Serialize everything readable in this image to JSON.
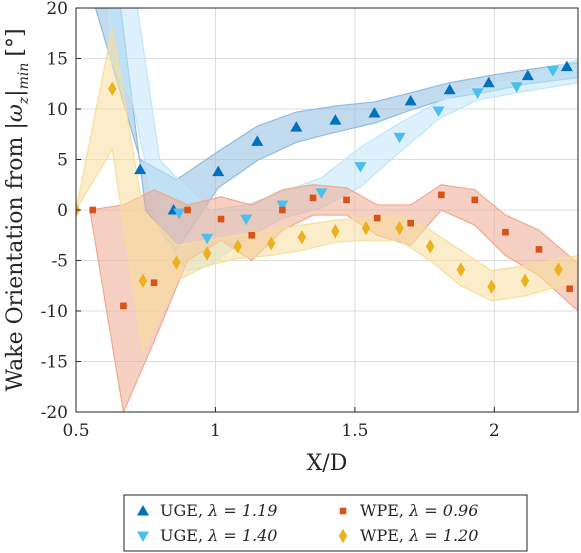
{
  "chart_data": {
    "type": "scatter",
    "xlabel": "X/D",
    "ylabel": "Wake Orientation from |ω_z|_min [°]",
    "ylabel_main": "Wake Orientation from ",
    "ylabel_omega": "|ω",
    "ylabel_sub": "z",
    "ylabel_bar": "|",
    "ylabel_min": "min",
    "ylabel_unit": "[°]",
    "xlim": [
      0.5,
      2.3
    ],
    "ylim": [
      -20,
      20
    ],
    "xticks": [
      0.5,
      1,
      1.5,
      2
    ],
    "xtick_labels": [
      "0.5",
      "1",
      "1.5",
      "2"
    ],
    "yticks": [
      -20,
      -15,
      -10,
      -5,
      0,
      5,
      10,
      15,
      20
    ],
    "ytick_labels": [
      "-20",
      "-15",
      "-10",
      "-5",
      "0",
      "5",
      "10",
      "15",
      "20"
    ],
    "grid": true,
    "legend_position": "below",
    "series": [
      {
        "name": "UGE, λ = 1.19",
        "legend_prefix": "UGE, ",
        "legend_value": "λ = 1.19",
        "marker": "triangle-up",
        "color": "#0072BD",
        "band_color": "#8FBCE0",
        "points": [
          [
            0.73,
            4
          ],
          [
            0.85,
            0
          ],
          [
            1.01,
            3.8
          ],
          [
            1.15,
            6.8
          ],
          [
            1.29,
            8.2
          ],
          [
            1.43,
            8.9
          ],
          [
            1.57,
            9.6
          ],
          [
            1.7,
            10.8
          ],
          [
            1.84,
            11.9
          ],
          [
            1.98,
            12.6
          ],
          [
            2.12,
            13.3
          ],
          [
            2.26,
            14.2
          ]
        ],
        "band_upper": [
          [
            0.57,
            20
          ],
          [
            0.73,
            5
          ],
          [
            0.86,
            3
          ],
          [
            1.01,
            5.8
          ],
          [
            1.15,
            8.3
          ],
          [
            1.29,
            9.7
          ],
          [
            1.43,
            10.3
          ],
          [
            1.57,
            10.7
          ],
          [
            1.7,
            11.6
          ],
          [
            1.84,
            12.6
          ],
          [
            1.98,
            13.3
          ],
          [
            2.12,
            13.9
          ],
          [
            2.3,
            14.6
          ]
        ],
        "band_lower": [
          [
            0.66,
            20
          ],
          [
            0.75,
            0
          ],
          [
            0.86,
            -4
          ],
          [
            1.01,
            2.2
          ],
          [
            1.15,
            4.9
          ],
          [
            1.29,
            6.7
          ],
          [
            1.43,
            7.7
          ],
          [
            1.57,
            8.6
          ],
          [
            1.7,
            9.9
          ],
          [
            1.84,
            11.1
          ],
          [
            1.98,
            11.7
          ],
          [
            2.12,
            12.5
          ],
          [
            2.3,
            13.1
          ]
        ]
      },
      {
        "name": "UGE, λ = 1.40",
        "legend_prefix": "UGE, ",
        "legend_value": "λ = 1.40",
        "marker": "triangle-down",
        "color": "#4DBEEE",
        "band_color": "#BFE6F8",
        "points": [
          [
            0.87,
            -0.3
          ],
          [
            0.97,
            -2.8
          ],
          [
            1.11,
            -0.9
          ],
          [
            1.24,
            0.5
          ],
          [
            1.38,
            1.7
          ],
          [
            1.52,
            4.3
          ],
          [
            1.66,
            7.2
          ],
          [
            1.8,
            9.8
          ],
          [
            1.94,
            11.6
          ],
          [
            2.08,
            12.2
          ],
          [
            2.21,
            13.8
          ]
        ],
        "band_upper": [
          [
            0.62,
            20
          ],
          [
            0.72,
            20
          ],
          [
            0.8,
            5
          ],
          [
            0.9,
            2
          ],
          [
            0.98,
            0
          ],
          [
            1.11,
            0.5
          ],
          [
            1.24,
            1.8
          ],
          [
            1.38,
            3.2
          ],
          [
            1.52,
            6.2
          ],
          [
            1.66,
            8.6
          ],
          [
            1.8,
            10.7
          ],
          [
            1.94,
            12.3
          ],
          [
            2.08,
            12.8
          ],
          [
            2.3,
            14.9
          ]
        ],
        "band_lower": [
          [
            0.62,
            15
          ],
          [
            0.7,
            11
          ],
          [
            0.8,
            -2
          ],
          [
            0.9,
            -6
          ],
          [
            0.98,
            -5.5
          ],
          [
            1.11,
            -2.8
          ],
          [
            1.24,
            -0.8
          ],
          [
            1.38,
            0.2
          ],
          [
            1.52,
            2.3
          ],
          [
            1.66,
            5.7
          ],
          [
            1.8,
            9.0
          ],
          [
            1.94,
            10.9
          ],
          [
            2.08,
            11.6
          ],
          [
            2.3,
            12.6
          ]
        ]
      },
      {
        "name": "WPE, λ = 0.96",
        "legend_prefix": "WPE, ",
        "legend_value": "λ = 0.96",
        "marker": "square",
        "color": "#D95319",
        "band_color": "#EFA98F",
        "points": [
          [
            0.56,
            0
          ],
          [
            0.67,
            -9.5
          ],
          [
            0.78,
            -7.2
          ],
          [
            0.9,
            0
          ],
          [
            1.02,
            -0.9
          ],
          [
            1.13,
            -2.5
          ],
          [
            1.24,
            0
          ],
          [
            1.35,
            1.2
          ],
          [
            1.47,
            1
          ],
          [
            1.58,
            -0.8
          ],
          [
            1.7,
            -1.3
          ],
          [
            1.81,
            1.5
          ],
          [
            1.93,
            1
          ],
          [
            2.04,
            -2.2
          ],
          [
            2.16,
            -3.9
          ],
          [
            2.27,
            -7.8
          ]
        ],
        "band_upper": [
          [
            0.55,
            0
          ],
          [
            0.67,
            0.5
          ],
          [
            0.78,
            2
          ],
          [
            0.9,
            0.5
          ],
          [
            1.02,
            1.3
          ],
          [
            1.13,
            0.5
          ],
          [
            1.24,
            2
          ],
          [
            1.35,
            2.5
          ],
          [
            1.47,
            2.2
          ],
          [
            1.58,
            0.5
          ],
          [
            1.7,
            0.5
          ],
          [
            1.81,
            2.5
          ],
          [
            1.93,
            2
          ],
          [
            2.04,
            -0.5
          ],
          [
            2.16,
            -2
          ],
          [
            2.3,
            -5.3
          ]
        ],
        "band_lower": [
          [
            0.55,
            0
          ],
          [
            0.67,
            -20
          ],
          [
            0.78,
            -13
          ],
          [
            0.9,
            -5
          ],
          [
            1.02,
            -3
          ],
          [
            1.13,
            -5
          ],
          [
            1.24,
            -2
          ],
          [
            1.35,
            -0.5
          ],
          [
            1.47,
            -0.5
          ],
          [
            1.58,
            -2.5
          ],
          [
            1.7,
            -3.5
          ],
          [
            1.81,
            0
          ],
          [
            1.93,
            -1.5
          ],
          [
            2.04,
            -4.5
          ],
          [
            2.16,
            -6.5
          ],
          [
            2.3,
            -10
          ]
        ]
      },
      {
        "name": "WPE, λ = 1.20",
        "legend_prefix": "WPE, ",
        "legend_value": "λ = 1.20",
        "marker": "diamond",
        "color": "#EDB120",
        "band_color": "#F7DE9C",
        "points": [
          [
            0.5,
            0
          ],
          [
            0.63,
            12
          ],
          [
            0.74,
            -7
          ],
          [
            0.86,
            -5.2
          ],
          [
            0.97,
            -4.3
          ],
          [
            1.08,
            -3.6
          ],
          [
            1.2,
            -3.3
          ],
          [
            1.31,
            -2.7
          ],
          [
            1.43,
            -2.1
          ],
          [
            1.54,
            -1.8
          ],
          [
            1.66,
            -1.8
          ],
          [
            1.77,
            -3.6
          ],
          [
            1.88,
            -5.9
          ],
          [
            1.99,
            -7.6
          ],
          [
            2.11,
            -7
          ],
          [
            2.23,
            -5.9
          ]
        ],
        "band_upper": [
          [
            0.5,
            0
          ],
          [
            0.63,
            18
          ],
          [
            0.74,
            0
          ],
          [
            0.86,
            -3.5
          ],
          [
            0.97,
            -3
          ],
          [
            1.08,
            -2.5
          ],
          [
            1.2,
            -2
          ],
          [
            1.31,
            -1.5
          ],
          [
            1.43,
            -1
          ],
          [
            1.54,
            -0.8
          ],
          [
            1.66,
            -0.5
          ],
          [
            1.77,
            -2
          ],
          [
            1.88,
            -4
          ],
          [
            1.99,
            -6
          ],
          [
            2.11,
            -5.5
          ],
          [
            2.3,
            -4.5
          ]
        ],
        "band_lower": [
          [
            0.5,
            0
          ],
          [
            0.63,
            6
          ],
          [
            0.74,
            -14
          ],
          [
            0.86,
            -7
          ],
          [
            0.97,
            -5.5
          ],
          [
            1.08,
            -4.8
          ],
          [
            1.2,
            -4.5
          ],
          [
            1.31,
            -4
          ],
          [
            1.43,
            -3.2
          ],
          [
            1.54,
            -3
          ],
          [
            1.66,
            -3
          ],
          [
            1.77,
            -5
          ],
          [
            1.88,
            -7.5
          ],
          [
            1.99,
            -9
          ],
          [
            2.11,
            -8.5
          ],
          [
            2.3,
            -7
          ]
        ]
      }
    ]
  }
}
